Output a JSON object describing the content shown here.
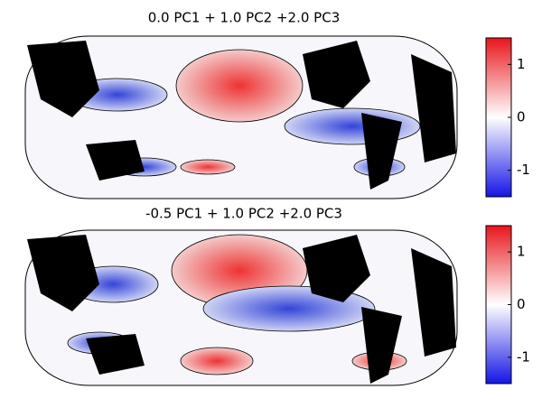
{
  "panels": [
    {
      "title": "0.0 PC1 + 1.0 PC2 +2.0 PC3",
      "colorbar": {
        "lim": [
          -1.5,
          1.5
        ],
        "ticks": [
          -1,
          0,
          1
        ]
      }
    },
    {
      "title": "-0.5 PC1 + 1.0 PC2 +2.0 PC3",
      "colorbar": {
        "lim": [
          -1.5,
          1.5
        ],
        "ticks": [
          -1,
          0,
          1
        ]
      }
    }
  ]
}
